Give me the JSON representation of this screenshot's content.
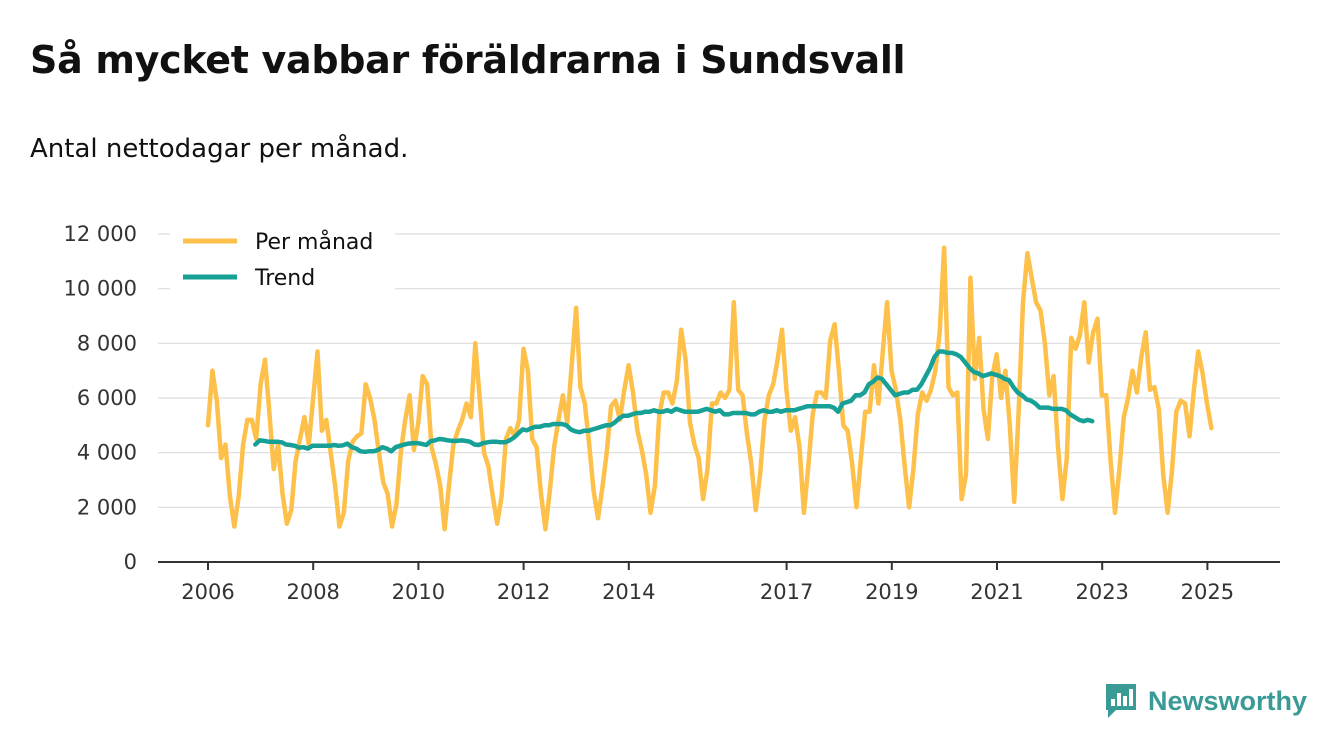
{
  "header": {
    "title": "Så mycket vabbar föräldrarna i Sundsvall",
    "subtitle": "Antal nettodagar per månad."
  },
  "brand": {
    "name": "Newsworthy",
    "icon": "newsworthy-logo-icon"
  },
  "colors": {
    "monthly": "#fdc04a",
    "trend": "#17a096",
    "grid": "#dddddd",
    "axis": "#333333"
  },
  "chart_data": {
    "type": "line",
    "title": "Så mycket vabbar föräldrarna i Sundsvall",
    "subtitle": "Antal nettodagar per månad.",
    "xlabel": "",
    "ylabel": "",
    "ylim": [
      0,
      12000
    ],
    "xlim": [
      2005.5,
      2026.2
    ],
    "yticks": [
      0,
      2000,
      4000,
      6000,
      8000,
      10000,
      12000
    ],
    "ytick_labels": [
      "0",
      "2 000",
      "4 000",
      "6 000",
      "8 000",
      "10 000",
      "12 000"
    ],
    "xticks": [
      2006,
      2008,
      2010,
      2012,
      2014,
      2017,
      2019,
      2021,
      2023,
      2025
    ],
    "xtick_labels": [
      "2006",
      "2008",
      "2010",
      "2012",
      "2014",
      "2017",
      "2019",
      "2021",
      "2023",
      "2025"
    ],
    "legend": {
      "placement": "top-left",
      "entries": [
        "Per månad",
        "Trend"
      ]
    },
    "series": [
      {
        "name": "Per månad",
        "start": 2006.0,
        "step": 0.0833,
        "values": [
          5000,
          7000,
          5900,
          3800,
          4300,
          2400,
          1300,
          2400,
          4300,
          5200,
          5200,
          4500,
          6500,
          7400,
          5500,
          3400,
          4300,
          2500,
          1400,
          1900,
          3700,
          4500,
          5300,
          4300,
          6000,
          7700,
          4800,
          5200,
          4000,
          2800,
          1300,
          1800,
          3700,
          4400,
          4600,
          4700,
          6500,
          6000,
          5200,
          4000,
          2900,
          2500,
          1300,
          2100,
          4000,
          5200,
          6100,
          4100,
          5100,
          6800,
          6500,
          4200,
          3600,
          2800,
          1200,
          2800,
          4300,
          4800,
          5200,
          5800,
          5300,
          8000,
          6000,
          4000,
          3500,
          2400,
          1400,
          2400,
          4500,
          4900,
          4600,
          5200,
          7800,
          7000,
          4500,
          4200,
          2500,
          1200,
          2600,
          4200,
          5200,
          6100,
          5100,
          7200,
          9300,
          6400,
          5800,
          4300,
          2600,
          1600,
          2700,
          4000,
          5700,
          5900,
          5200,
          6300,
          7200,
          6200,
          4800,
          4100,
          3200,
          1800,
          2800,
          5400,
          6200,
          6200,
          5800,
          6600,
          8500,
          7400,
          5100,
          4300,
          3800,
          2300,
          3400,
          5800,
          5800,
          6200,
          6000,
          6300,
          9500,
          6300,
          6100,
          4700,
          3600,
          1900,
          3200,
          5200,
          6100,
          6500,
          7400,
          8500,
          6300,
          4800,
          5300,
          4200,
          1800,
          3500,
          5400,
          6200,
          6200,
          6000,
          8100,
          8700,
          7000,
          5000,
          4800,
          3600,
          2000,
          3800,
          5500,
          5500,
          7200,
          5800,
          7700,
          9500,
          7000,
          6300,
          5200,
          3500,
          2000,
          3400,
          5400,
          6200,
          5900,
          6300,
          7000,
          8400,
          11500,
          6400,
          6100,
          6200,
          2300,
          3200,
          10400,
          6700,
          8200,
          5600,
          4500,
          6800,
          7600,
          6000,
          7000,
          5000,
          2200,
          5500,
          9500,
          11300,
          10400,
          9500,
          9200,
          8000,
          6100,
          6800,
          4200,
          2300,
          3800,
          8200,
          7800,
          8300,
          9500,
          7300,
          8400,
          8900,
          6100,
          6100,
          3700,
          1800,
          3400,
          5300,
          6000,
          7000,
          6200,
          7500,
          8400,
          6300,
          6400,
          5600,
          3200,
          1800,
          3300,
          5500,
          5900,
          5800,
          4600,
          6300,
          7700,
          6900,
          5800,
          4900
        ]
      },
      {
        "name": "Trend",
        "start": 2006.9,
        "step": 0.0833,
        "values": [
          4300,
          4450,
          4430,
          4400,
          4400,
          4400,
          4380,
          4300,
          4280,
          4250,
          4180,
          4200,
          4150,
          4250,
          4250,
          4250,
          4250,
          4250,
          4280,
          4250,
          4270,
          4330,
          4200,
          4150,
          4050,
          4030,
          4050,
          4050,
          4100,
          4200,
          4150,
          4050,
          4200,
          4250,
          4300,
          4330,
          4350,
          4350,
          4320,
          4280,
          4420,
          4450,
          4500,
          4480,
          4450,
          4430,
          4430,
          4450,
          4430,
          4400,
          4300,
          4280,
          4350,
          4380,
          4400,
          4400,
          4380,
          4380,
          4450,
          4550,
          4700,
          4850,
          4820,
          4900,
          4950,
          4950,
          5000,
          5000,
          5050,
          5050,
          5050,
          5000,
          4850,
          4780,
          4750,
          4800,
          4800,
          4850,
          4900,
          4950,
          5000,
          5000,
          5100,
          5250,
          5350,
          5350,
          5400,
          5450,
          5450,
          5500,
          5500,
          5550,
          5500,
          5500,
          5550,
          5500,
          5600,
          5550,
          5500,
          5500,
          5500,
          5500,
          5550,
          5600,
          5550,
          5500,
          5550,
          5400,
          5400,
          5450,
          5450,
          5450,
          5450,
          5400,
          5400,
          5500,
          5550,
          5500,
          5500,
          5550,
          5500,
          5550,
          5550,
          5550,
          5600,
          5650,
          5700,
          5700,
          5700,
          5700,
          5700,
          5700,
          5650,
          5500,
          5800,
          5850,
          5900,
          6100,
          6100,
          6200,
          6500,
          6600,
          6750,
          6700,
          6500,
          6300,
          6100,
          6150,
          6200,
          6200,
          6300,
          6300,
          6500,
          6800,
          7100,
          7500,
          7700,
          7700,
          7650,
          7650,
          7600,
          7500,
          7300,
          7100,
          6950,
          6900,
          6800,
          6850,
          6900,
          6850,
          6800,
          6700,
          6650,
          6400,
          6200,
          6100,
          5950,
          5900,
          5800,
          5650,
          5650,
          5650,
          5600,
          5600,
          5600,
          5550,
          5400,
          5300,
          5200,
          5150,
          5200,
          5150
        ]
      }
    ]
  }
}
